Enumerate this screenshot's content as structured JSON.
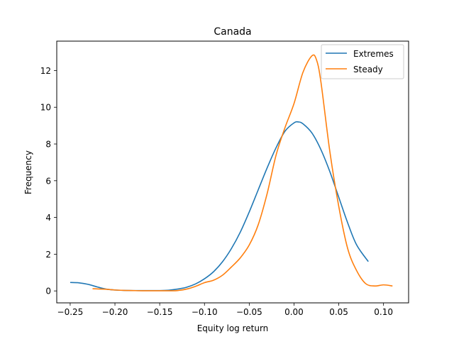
{
  "chart_data": {
    "type": "line",
    "title": "Canada",
    "xlabel": "Equity log return",
    "ylabel": "Frequency",
    "xlim": [
      -0.265,
      0.128
    ],
    "ylim": [
      -0.65,
      13.6
    ],
    "grid": false,
    "legend_position": "top-right",
    "x_ticks": [
      -0.25,
      -0.2,
      -0.15,
      -0.1,
      -0.05,
      0.0,
      0.05,
      0.1
    ],
    "x_tick_labels": [
      "−0.25",
      "−0.20",
      "−0.15",
      "−0.10",
      "−0.05",
      "0.00",
      "0.05",
      "0.10"
    ],
    "y_ticks": [
      0,
      2,
      4,
      6,
      8,
      10,
      12
    ],
    "y_tick_labels": [
      "0",
      "2",
      "4",
      "6",
      "8",
      "10",
      "12"
    ],
    "series": [
      {
        "name": "Extremes",
        "color": "#1f77b4",
        "x": [
          -0.25,
          -0.24,
          -0.23,
          -0.22,
          -0.21,
          -0.2,
          -0.19,
          -0.18,
          -0.17,
          -0.16,
          -0.15,
          -0.14,
          -0.13,
          -0.12,
          -0.11,
          -0.1,
          -0.09,
          -0.08,
          -0.07,
          -0.06,
          -0.05,
          -0.04,
          -0.03,
          -0.02,
          -0.01,
          0.0,
          0.005,
          0.01,
          0.02,
          0.03,
          0.04,
          0.05,
          0.06,
          0.07,
          0.083
        ],
        "y": [
          0.46,
          0.44,
          0.36,
          0.22,
          0.1,
          0.05,
          0.03,
          0.02,
          0.02,
          0.02,
          0.02,
          0.04,
          0.1,
          0.2,
          0.38,
          0.66,
          1.04,
          1.58,
          2.3,
          3.2,
          4.3,
          5.5,
          6.7,
          7.8,
          8.7,
          9.15,
          9.2,
          9.1,
          8.6,
          7.7,
          6.5,
          5.1,
          3.7,
          2.5,
          1.6
        ]
      },
      {
        "name": "Steady",
        "color": "#ff7f0e",
        "x": [
          -0.225,
          -0.21,
          -0.2,
          -0.19,
          -0.18,
          -0.17,
          -0.16,
          -0.15,
          -0.14,
          -0.13,
          -0.12,
          -0.11,
          -0.1,
          -0.09,
          -0.08,
          -0.07,
          -0.06,
          -0.05,
          -0.04,
          -0.03,
          -0.02,
          -0.01,
          0.0,
          0.01,
          0.02,
          0.025,
          0.03,
          0.04,
          0.05,
          0.06,
          0.07,
          0.08,
          0.09,
          0.1,
          0.11
        ],
        "y": [
          0.12,
          0.09,
          0.05,
          0.03,
          0.02,
          0.01,
          0.01,
          0.01,
          0.01,
          0.02,
          0.1,
          0.25,
          0.45,
          0.58,
          0.85,
          1.3,
          1.8,
          2.5,
          3.6,
          5.3,
          7.4,
          8.9,
          10.2,
          11.9,
          12.8,
          12.6,
          11.4,
          7.6,
          4.6,
          2.3,
          1.1,
          0.4,
          0.27,
          0.33,
          0.27
        ]
      }
    ]
  }
}
